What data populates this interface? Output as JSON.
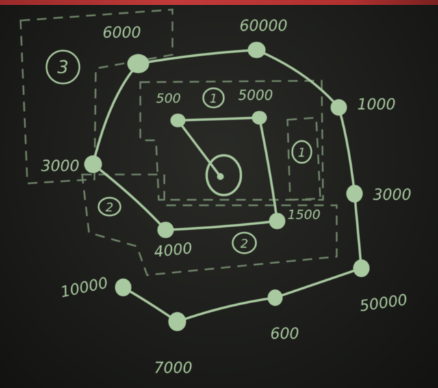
{
  "colors": {
    "board": "#1f201d",
    "chalk": "#a9c9a0",
    "chalk_dim": "#8aa583",
    "top_strip": "#c23a3a"
  },
  "nodes": {
    "n6000": "6000",
    "n60000": "60000",
    "n1000": "1000",
    "n3000_right": "3000",
    "n50000": "50000",
    "n600": "600",
    "n7000": "7000",
    "n10000": "10000",
    "n3000_left": "3000",
    "n500": "500",
    "n5000": "5000",
    "n1500": "1500",
    "n4000": "4000"
  },
  "regions": {
    "r3": "3",
    "r1_top": "1",
    "r1_right": "1",
    "r2_left": "2",
    "r2_bottom": "2"
  }
}
